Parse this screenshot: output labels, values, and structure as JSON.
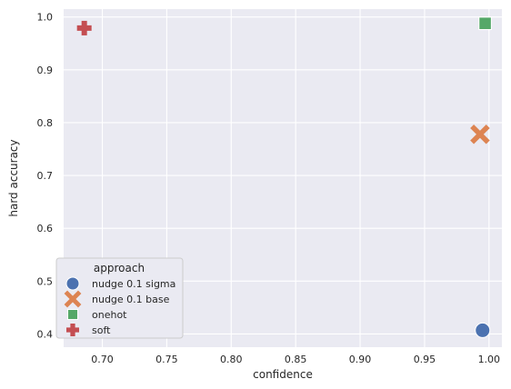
{
  "chart_data": {
    "type": "scatter",
    "xlabel": "confidence",
    "ylabel": "hard accuracy",
    "xlim": [
      0.67,
      1.01
    ],
    "ylim": [
      0.375,
      1.015
    ],
    "xticks": [
      0.7,
      0.75,
      0.8,
      0.85,
      0.9,
      0.95,
      1.0
    ],
    "xtick_labels": [
      "0.70",
      "0.75",
      "0.80",
      "0.85",
      "0.90",
      "0.95",
      "1.00"
    ],
    "yticks": [
      0.4,
      0.5,
      0.6,
      0.7,
      0.8,
      0.9,
      1.0
    ],
    "ytick_labels": [
      "0.4",
      "0.5",
      "0.6",
      "0.7",
      "0.8",
      "0.9",
      "1.0"
    ],
    "grid": true,
    "background": "#eaeaf2",
    "legend": {
      "title": "approach",
      "placement": "lower-left"
    },
    "series": [
      {
        "name": "nudge 0.1 sigma",
        "marker": "circle",
        "color": "#4c72b0",
        "x": [
          0.995
        ],
        "y": [
          0.407
        ]
      },
      {
        "name": "nudge 0.1 base",
        "marker": "x",
        "color": "#dd8452",
        "x": [
          0.993
        ],
        "y": [
          0.778
        ]
      },
      {
        "name": "onehot",
        "marker": "square",
        "color": "#55a868",
        "x": [
          0.997
        ],
        "y": [
          0.988
        ]
      },
      {
        "name": "soft",
        "marker": "plus",
        "color": "#c44e52",
        "x": [
          0.686
        ],
        "y": [
          0.979
        ]
      }
    ]
  }
}
